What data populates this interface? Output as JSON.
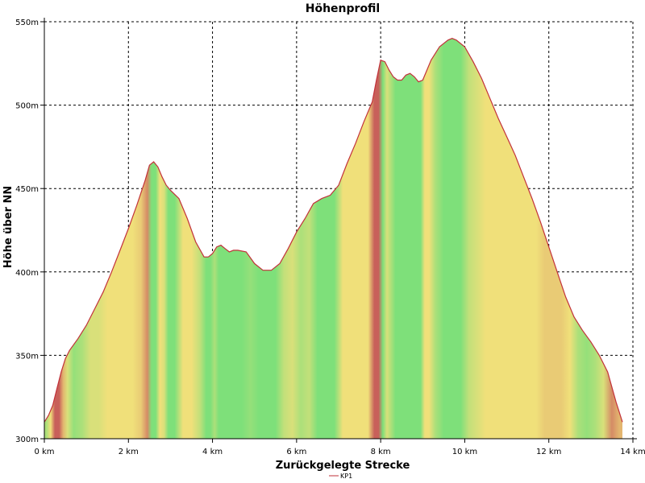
{
  "chart_data": {
    "type": "area",
    "title": "Höhenprofil",
    "xlabel": "Zurückgelegte Strecke",
    "ylabel": "Höhe über NN",
    "xlim": [
      0,
      14
    ],
    "ylim": [
      300,
      550
    ],
    "x_ticks": [
      0,
      2,
      4,
      6,
      8,
      10,
      12,
      14
    ],
    "x_tick_labels": [
      "0 km",
      "2 km",
      "4 km",
      "6 km",
      "8 km",
      "10 km",
      "12 km",
      "14 km"
    ],
    "y_ticks": [
      300,
      350,
      400,
      450,
      500,
      550
    ],
    "y_tick_labels": [
      "300m",
      "350m",
      "400m",
      "450m",
      "500m",
      "550m"
    ],
    "grid": true,
    "legend_position": "bottom-center",
    "line_color": "#c2313a",
    "fill_colors": {
      "flat": "#7ee07a",
      "moderate": "#f0e07a",
      "steep": "#c8605a"
    },
    "series": [
      {
        "name": "KP1",
        "x": [
          0,
          0.1,
          0.2,
          0.3,
          0.4,
          0.5,
          0.6,
          0.8,
          1.0,
          1.2,
          1.4,
          1.6,
          1.8,
          2.0,
          2.2,
          2.4,
          2.5,
          2.6,
          2.7,
          2.8,
          2.9,
          3.0,
          3.2,
          3.4,
          3.6,
          3.8,
          3.9,
          4.0,
          4.1,
          4.2,
          4.3,
          4.4,
          4.5,
          4.6,
          4.8,
          5.0,
          5.2,
          5.4,
          5.6,
          5.8,
          6.0,
          6.2,
          6.4,
          6.6,
          6.8,
          7.0,
          7.2,
          7.4,
          7.6,
          7.8,
          7.9,
          8.0,
          8.1,
          8.2,
          8.3,
          8.4,
          8.5,
          8.6,
          8.7,
          8.8,
          8.9,
          9.0,
          9.1,
          9.2,
          9.4,
          9.6,
          9.7,
          9.8,
          10.0,
          10.2,
          10.4,
          10.6,
          10.8,
          11.0,
          11.2,
          11.4,
          11.6,
          11.8,
          12.0,
          12.2,
          12.4,
          12.6,
          12.8,
          13.0,
          13.2,
          13.4,
          13.6,
          13.75
        ],
        "y": [
          310,
          314,
          320,
          330,
          340,
          348,
          353,
          360,
          368,
          378,
          388,
          400,
          413,
          426,
          440,
          455,
          464,
          466,
          463,
          457,
          452,
          449,
          444,
          432,
          418,
          409,
          409,
          411,
          415,
          416,
          414,
          412,
          413,
          413,
          412,
          405,
          401,
          401,
          405,
          414,
          424,
          432,
          441,
          444,
          446,
          452,
          465,
          477,
          490,
          502,
          515,
          527,
          526,
          521,
          517,
          515,
          515,
          518,
          519,
          517,
          514,
          515,
          521,
          527,
          535,
          539,
          540,
          539,
          535,
          526,
          516,
          504,
          492,
          481,
          470,
          457,
          444,
          430,
          415,
          400,
          385,
          373,
          365,
          358,
          350,
          340,
          322,
          310
        ]
      }
    ]
  }
}
